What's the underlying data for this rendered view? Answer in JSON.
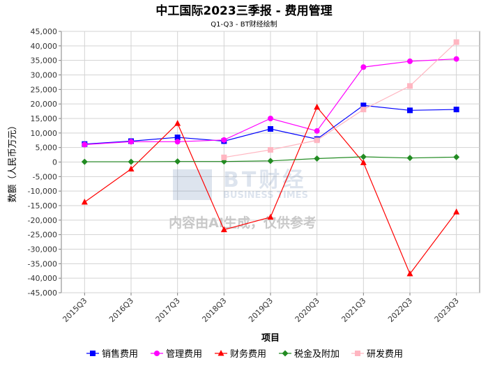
{
  "title": "中工国际2023三季报 - 费用管理",
  "subtitle": "Q1-Q3 - BT财经绘制",
  "watermark": {
    "brand": "BT财经",
    "brand_en": "BUSINESS TIMES",
    "notice": "内容由AI生成，仅供参考"
  },
  "chart_data": {
    "type": "line",
    "title": "中工国际2023三季报 - 费用管理",
    "subtitle": "Q1-Q3 - BT财经绘制",
    "xlabel": "项目",
    "ylabel": "数额（人民币万元）",
    "ylim": [
      -45000,
      45000
    ],
    "ytick_step": 5000,
    "grid": true,
    "legend_position": "bottom",
    "categories": [
      "2015Q3",
      "2016Q3",
      "2017Q3",
      "2018Q3",
      "2019Q3",
      "2020Q3",
      "2021Q3",
      "2022Q3",
      "2023Q3"
    ],
    "series": [
      {
        "name": "销售费用",
        "color": "#0000ff",
        "marker": "square",
        "values": [
          6200,
          7200,
          8500,
          7200,
          11400,
          7900,
          19500,
          17800,
          18100
        ]
      },
      {
        "name": "管理费用",
        "color": "#ff00ff",
        "marker": "circle",
        "values": [
          6000,
          7000,
          7000,
          7600,
          15000,
          10700,
          32700,
          34700,
          35500
        ]
      },
      {
        "name": "财务费用",
        "color": "#ff0000",
        "marker": "triangle",
        "values": [
          -13800,
          -2400,
          13300,
          -23300,
          -19000,
          18900,
          -200,
          -38500,
          -17200
        ]
      },
      {
        "name": "税金及附加",
        "color": "#228b22",
        "marker": "diamond",
        "values": [
          100,
          100,
          200,
          200,
          400,
          1200,
          1800,
          1400,
          1700
        ]
      },
      {
        "name": "研发费用",
        "color": "#ffb6c1",
        "marker": "square",
        "values": [
          null,
          null,
          null,
          1600,
          4200,
          7500,
          18100,
          26200,
          41300
        ]
      }
    ]
  }
}
